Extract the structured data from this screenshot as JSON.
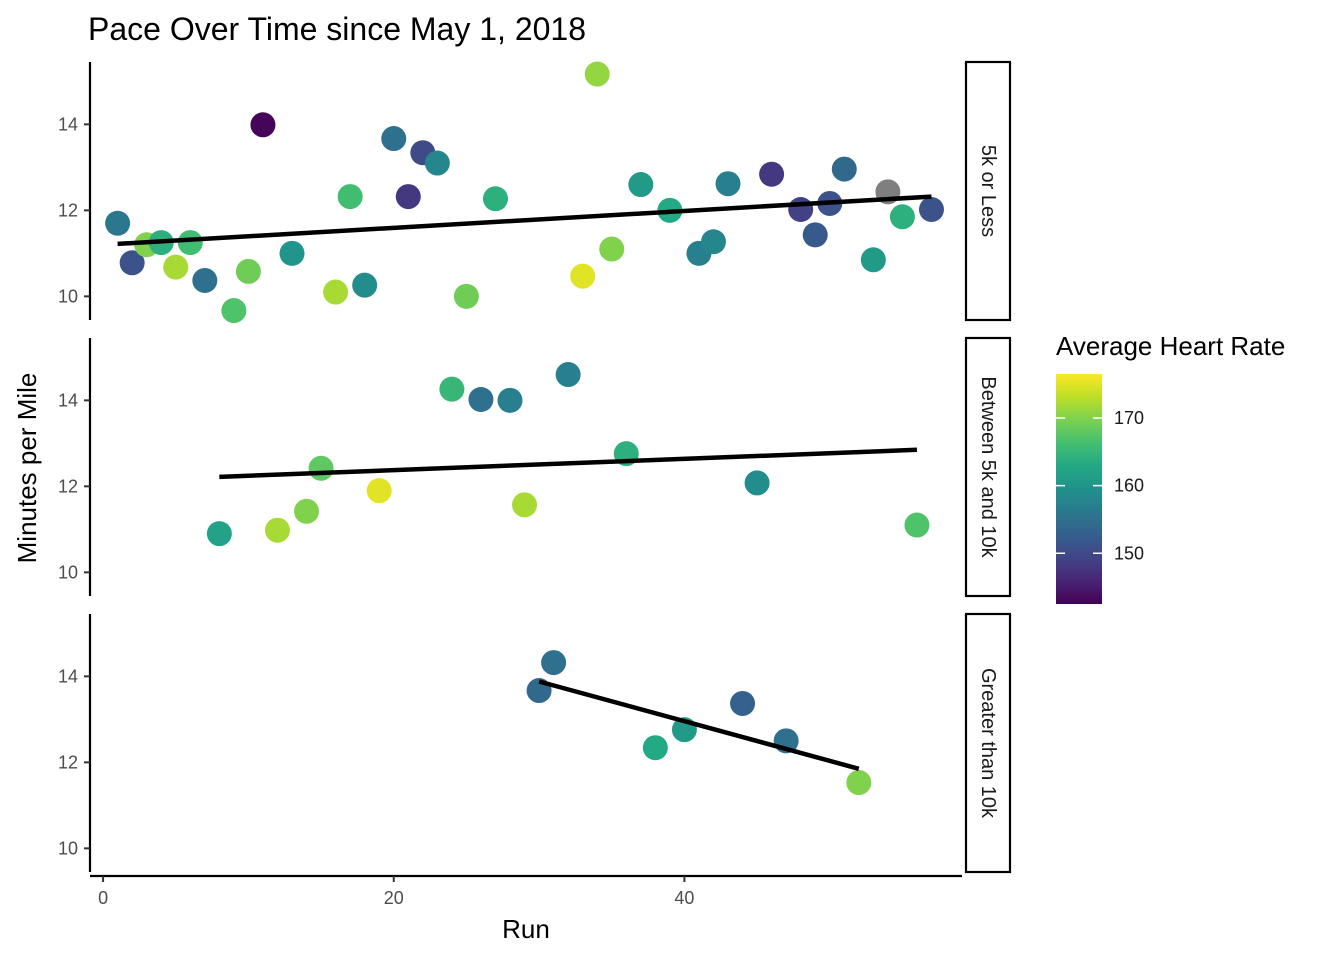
{
  "chart_data": {
    "type": "scatter",
    "title": "Pace Over Time since May 1, 2018",
    "xlabel": "Run",
    "ylabel": "Minutes per Mile",
    "xlim": [
      -0.9,
      59.1
    ],
    "ylim": [
      9.45,
      15.45
    ],
    "x_ticks": [
      0,
      20,
      40
    ],
    "y_ticks": [
      10,
      12,
      14
    ],
    "grid": false,
    "color_scale": {
      "title": "Average Heart Rate",
      "palette": "viridis",
      "min": 142.5,
      "max": 176.5,
      "ticks": [
        150,
        160,
        170
      ],
      "na_color": "#7f7f7f"
    },
    "panels": [
      {
        "label": "5k or Less",
        "trend": {
          "x": [
            1,
            57
          ],
          "y": [
            11.22,
            12.32
          ]
        },
        "points": [
          {
            "x": 1,
            "y": 11.7,
            "hr": 156
          },
          {
            "x": 2,
            "y": 10.78,
            "hr": 151
          },
          {
            "x": 3,
            "y": 11.2,
            "hr": 170
          },
          {
            "x": 4,
            "y": 11.25,
            "hr": 164
          },
          {
            "x": 5,
            "y": 10.68,
            "hr": 172
          },
          {
            "x": 6,
            "y": 11.25,
            "hr": 166
          },
          {
            "x": 7,
            "y": 10.37,
            "hr": 155
          },
          {
            "x": 9,
            "y": 9.67,
            "hr": 167
          },
          {
            "x": 10,
            "y": 10.58,
            "hr": 169
          },
          {
            "x": 11,
            "y": 13.99,
            "hr": 143
          },
          {
            "x": 13,
            "y": 11.0,
            "hr": 160
          },
          {
            "x": 16,
            "y": 10.1,
            "hr": 172
          },
          {
            "x": 17,
            "y": 12.32,
            "hr": 166
          },
          {
            "x": 18,
            "y": 10.26,
            "hr": 159
          },
          {
            "x": 20,
            "y": 13.67,
            "hr": 155
          },
          {
            "x": 21,
            "y": 12.32,
            "hr": 148
          },
          {
            "x": 22,
            "y": 13.34,
            "hr": 150
          },
          {
            "x": 23,
            "y": 13.1,
            "hr": 158
          },
          {
            "x": 25,
            "y": 10.0,
            "hr": 169
          },
          {
            "x": 27,
            "y": 12.27,
            "hr": 164
          },
          {
            "x": 33,
            "y": 10.47,
            "hr": 175
          },
          {
            "x": 34,
            "y": 15.17,
            "hr": 171
          },
          {
            "x": 35,
            "y": 11.1,
            "hr": 170
          },
          {
            "x": 37,
            "y": 12.6,
            "hr": 161
          },
          {
            "x": 39,
            "y": 12.0,
            "hr": 163
          },
          {
            "x": 41,
            "y": 11.0,
            "hr": 157
          },
          {
            "x": 42,
            "y": 11.27,
            "hr": 158
          },
          {
            "x": 43,
            "y": 12.62,
            "hr": 157
          },
          {
            "x": 46,
            "y": 12.84,
            "hr": 148
          },
          {
            "x": 48,
            "y": 12.02,
            "hr": 149
          },
          {
            "x": 49,
            "y": 11.43,
            "hr": 152
          },
          {
            "x": 50,
            "y": 12.16,
            "hr": 151
          },
          {
            "x": 51,
            "y": 12.96,
            "hr": 154
          },
          {
            "x": 53,
            "y": 10.85,
            "hr": 161
          },
          {
            "x": 54,
            "y": 12.43,
            "hr": null
          },
          {
            "x": 55,
            "y": 11.85,
            "hr": 164
          },
          {
            "x": 57,
            "y": 12.02,
            "hr": 151
          }
        ]
      },
      {
        "label": "Between 5k and 10k",
        "trend": {
          "x": [
            8,
            56
          ],
          "y": [
            12.22,
            12.85
          ]
        },
        "points": [
          {
            "x": 8,
            "y": 10.9,
            "hr": 162
          },
          {
            "x": 12,
            "y": 10.98,
            "hr": 172
          },
          {
            "x": 14,
            "y": 11.42,
            "hr": 170
          },
          {
            "x": 15,
            "y": 12.42,
            "hr": 168
          },
          {
            "x": 19,
            "y": 11.9,
            "hr": 175
          },
          {
            "x": 24,
            "y": 14.26,
            "hr": 165
          },
          {
            "x": 26,
            "y": 14.02,
            "hr": 155
          },
          {
            "x": 28,
            "y": 14.0,
            "hr": 157
          },
          {
            "x": 29,
            "y": 11.57,
            "hr": 172
          },
          {
            "x": 32,
            "y": 14.6,
            "hr": 157
          },
          {
            "x": 36,
            "y": 12.76,
            "hr": 164
          },
          {
            "x": 45,
            "y": 12.08,
            "hr": 159
          },
          {
            "x": 56,
            "y": 11.1,
            "hr": 167
          }
        ]
      },
      {
        "label": "Greater than 10k",
        "trend": {
          "x": [
            30,
            52
          ],
          "y": [
            13.88,
            11.85
          ]
        },
        "points": [
          {
            "x": 30,
            "y": 13.67,
            "hr": 154
          },
          {
            "x": 31,
            "y": 14.32,
            "hr": 155
          },
          {
            "x": 38,
            "y": 12.34,
            "hr": 163
          },
          {
            "x": 40,
            "y": 12.76,
            "hr": 161
          },
          {
            "x": 44,
            "y": 13.37,
            "hr": 153
          },
          {
            "x": 47,
            "y": 12.5,
            "hr": 155
          },
          {
            "x": 52,
            "y": 11.53,
            "hr": 170
          }
        ]
      }
    ]
  }
}
